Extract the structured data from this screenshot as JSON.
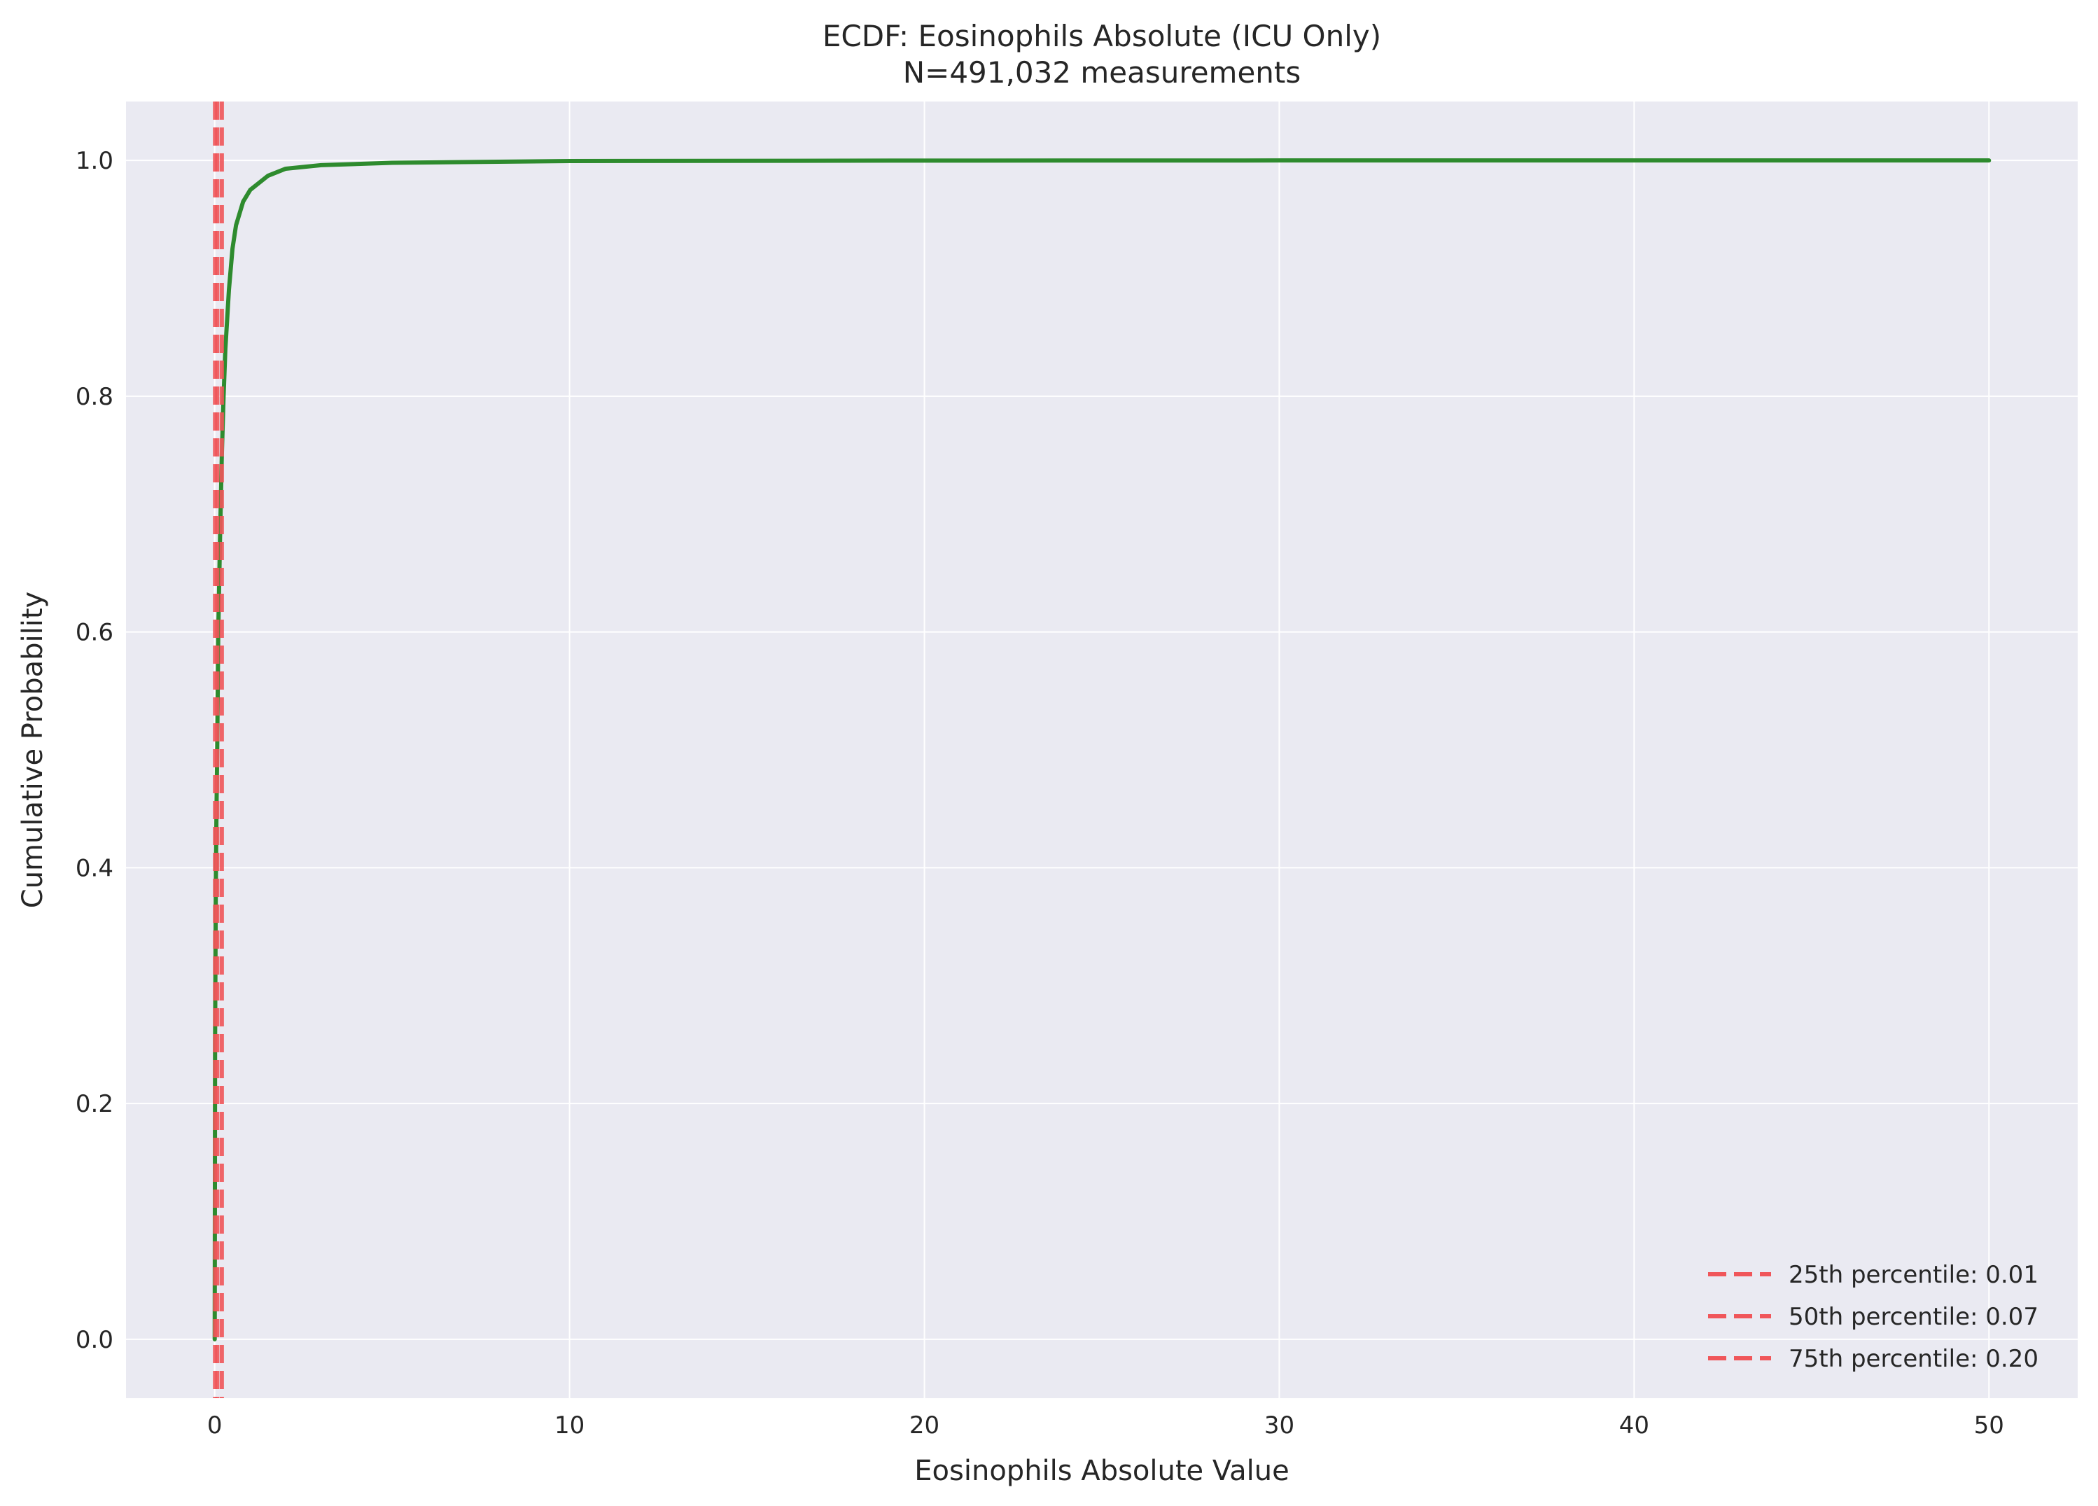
{
  "chart_data": {
    "type": "line",
    "title": "ECDF: Eosinophils Absolute (ICU Only)",
    "subtitle": "N=491,032 measurements",
    "xlabel": "Eosinophils Absolute Value",
    "ylabel": "Cumulative Probability",
    "xlim": [
      -2.5,
      52.5
    ],
    "ylim": [
      -0.05,
      1.05
    ],
    "xticks": [
      0,
      10,
      20,
      30,
      40,
      50
    ],
    "yticks": [
      0.0,
      0.2,
      0.4,
      0.6,
      0.8,
      1.0
    ],
    "grid": true,
    "legend_position": "bottom-right",
    "colors": {
      "background": "#eaeaf2",
      "grid": "#ffffff",
      "ecdf": "#2e8b2e",
      "percentile": "#f0565a"
    },
    "series": [
      {
        "x": [
          0,
          0.005,
          0.01,
          0.03,
          0.05,
          0.07,
          0.1,
          0.15,
          0.2,
          0.25,
          0.3,
          0.4,
          0.5,
          0.6,
          0.8,
          1.0,
          1.5,
          2.0,
          3.0,
          5.0,
          10,
          20,
          30,
          40,
          50
        ],
        "y": [
          0,
          0.12,
          0.25,
          0.38,
          0.45,
          0.5,
          0.6,
          0.68,
          0.75,
          0.8,
          0.84,
          0.89,
          0.925,
          0.945,
          0.965,
          0.975,
          0.987,
          0.993,
          0.996,
          0.998,
          0.9995,
          0.9999,
          1.0,
          1.0,
          1.0
        ]
      }
    ],
    "percentiles": [
      {
        "label": "25th percentile: 0.01",
        "value": 0.01
      },
      {
        "label": "50th percentile: 0.07",
        "value": 0.07
      },
      {
        "label": "75th percentile: 0.20",
        "value": 0.2
      }
    ]
  }
}
